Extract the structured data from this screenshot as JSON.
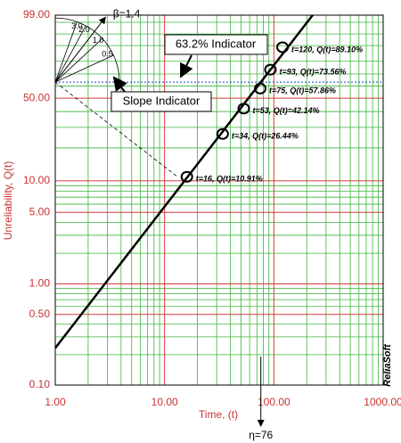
{
  "chart_data": {
    "type": "weibull",
    "x_label": "Time, (t)",
    "y_label": "Unreliability, Q(t)",
    "x": [
      16,
      34,
      53,
      75,
      93,
      120
    ],
    "values": [
      10.91,
      26.44,
      42.14,
      57.86,
      73.56,
      89.1
    ],
    "value_labels": [
      "t=16, Q(t)=10.91%",
      "t=34, Q(t)=26.44%",
      "t=53, Q(t)=42.14%",
      "t=75, Q(t)=57.86%",
      "t=93, Q(t)=73.56%",
      "t=120, Q(t)=89.10%"
    ],
    "color": "#000000",
    "xlim": [
      1,
      1000
    ],
    "ylim": [
      0.1,
      99
    ],
    "log_x": true,
    "y_scale": "weibull",
    "grid": true,
    "xticks": [
      {
        "value": 1,
        "label": "1.00"
      },
      {
        "value": 10,
        "label": "10.00"
      },
      {
        "value": 100,
        "label": "100.00"
      },
      {
        "value": 1000,
        "label": "1000.00"
      }
    ],
    "yticks": [
      {
        "value": 0.1,
        "label": "0.10"
      },
      {
        "value": 0.5,
        "label": "0.50"
      },
      {
        "value": 1,
        "label": "1.00"
      },
      {
        "value": 5,
        "label": "5.00"
      },
      {
        "value": 10,
        "label": "10.00"
      },
      {
        "value": 50,
        "label": "50.00"
      },
      {
        "value": 99,
        "label": "99.00"
      }
    ],
    "x_minor_grid": [
      2,
      3,
      4,
      5,
      6,
      7,
      8,
      9,
      20,
      30,
      40,
      50,
      60,
      70,
      80,
      90,
      200,
      300,
      400,
      500,
      600,
      700,
      800,
      900
    ],
    "y_minor_grid": [
      0.2,
      0.3,
      0.4,
      0.6,
      0.7,
      0.8,
      0.9,
      2,
      3,
      4,
      6,
      7,
      8,
      9,
      20,
      30,
      40,
      60,
      70,
      80,
      90,
      95,
      98
    ],
    "fit": {
      "beta": 1.4,
      "eta": 76,
      "beta_label": "β=1.4",
      "eta_label": "η=76"
    },
    "indicator": {
      "value": 63.2,
      "label": "63.2% Indicator"
    },
    "slope_label": "Slope Indicator",
    "slope_betas": [
      {
        "value": 0.5,
        "label": "0.5"
      },
      {
        "value": 1,
        "label": "1.0"
      },
      {
        "value": 2,
        "label": "2.0"
      },
      {
        "value": 3,
        "label": "3.0"
      }
    ],
    "watermark": "ReliaSoft"
  }
}
